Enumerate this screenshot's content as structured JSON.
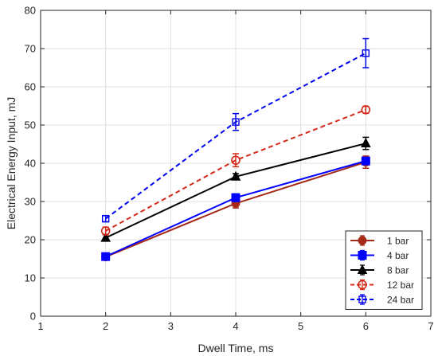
{
  "chart_data": {
    "type": "line",
    "xlabel": "Dwell Time, ms",
    "ylabel": "Electrical Energy Input, mJ",
    "xlim": [
      1,
      7
    ],
    "ylim": [
      0,
      80
    ],
    "xticks": [
      1,
      2,
      3,
      4,
      5,
      6,
      7
    ],
    "yticks": [
      0,
      10,
      20,
      30,
      40,
      50,
      60,
      70,
      80
    ],
    "grid": true,
    "legend_position": "bottom-right",
    "x": [
      2,
      4,
      6
    ],
    "series": [
      {
        "name": "1 bar",
        "values": [
          15.5,
          29.5,
          40.3
        ],
        "err": [
          0.6,
          1.2,
          1.6
        ],
        "color": "#a52a1a",
        "dash": false,
        "marker": "filled-circle"
      },
      {
        "name": "4 bar",
        "values": [
          15.6,
          31.0,
          40.6
        ],
        "err": [
          0.6,
          1.0,
          0.8
        ],
        "color": "#0000ff",
        "dash": false,
        "marker": "filled-square"
      },
      {
        "name": "8 bar",
        "values": [
          20.5,
          36.5,
          45.2
        ],
        "err": [
          0.8,
          0.8,
          1.6
        ],
        "color": "#000000",
        "dash": false,
        "marker": "filled-triangle"
      },
      {
        "name": "12 bar",
        "values": [
          22.3,
          40.8,
          54.0
        ],
        "err": [
          1.0,
          1.7,
          0.9
        ],
        "color": "#d42a1a",
        "dash": true,
        "marker": "open-circle"
      },
      {
        "name": "24 bar",
        "values": [
          25.5,
          50.8,
          68.8
        ],
        "err": [
          0.8,
          2.2,
          3.8
        ],
        "color": "#0000ee",
        "dash": true,
        "marker": "open-square"
      }
    ]
  }
}
